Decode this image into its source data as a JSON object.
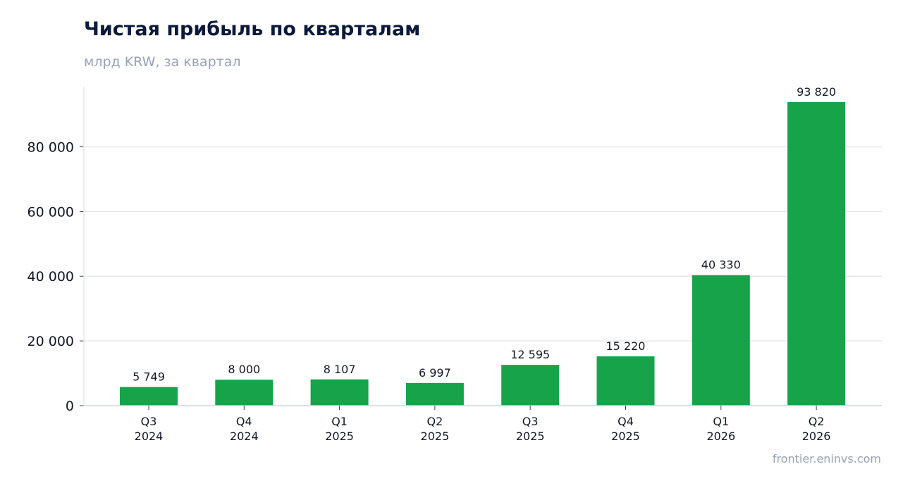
{
  "chart_data": {
    "type": "bar",
    "title": "Чистая прибыль по кварталам",
    "subtitle": "млрд KRW, за квартал",
    "categories": [
      [
        "Q3",
        "2024"
      ],
      [
        "Q4",
        "2024"
      ],
      [
        "Q1",
        "2025"
      ],
      [
        "Q2",
        "2025"
      ],
      [
        "Q3",
        "2025"
      ],
      [
        "Q4",
        "2025"
      ],
      [
        "Q1",
        "2026"
      ],
      [
        "Q2",
        "2026"
      ]
    ],
    "values": [
      5749,
      8000,
      8107,
      6997,
      12595,
      15220,
      40330,
      93820
    ],
    "value_labels": [
      "5 749",
      "8 000",
      "8 107",
      "6 997",
      "12 595",
      "15 220",
      "40 330",
      "93 820"
    ],
    "yticks": [
      {
        "value": 0,
        "label": "0"
      },
      {
        "value": 20000,
        "label": "20 000"
      },
      {
        "value": 40000,
        "label": "40 000"
      },
      {
        "value": 60000,
        "label": "60 000"
      },
      {
        "value": 80000,
        "label": "80 000"
      }
    ],
    "ylim": [
      0,
      98000
    ],
    "grid": true,
    "bar_color": "#16a34a",
    "grid_color": "#e5e7eb"
  },
  "footer": {
    "credit": "frontier.eninvs.com"
  }
}
